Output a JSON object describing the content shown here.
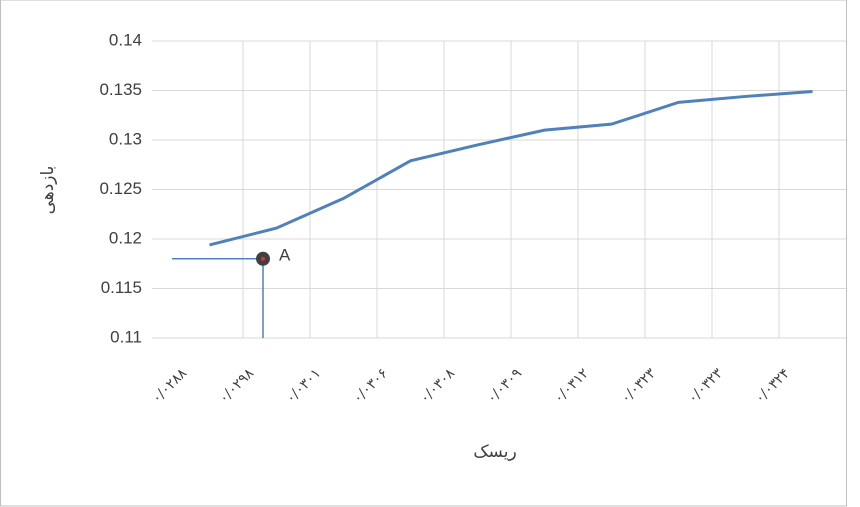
{
  "chart_data": {
    "type": "line",
    "categories": [
      "۰/۰۲۸۸",
      "۰/۰۲۹۸",
      "۰/۰۳۰۱",
      "۰/۰۳۰۶",
      "۰/۰۳۰۸",
      "۰/۰۳۰۹",
      "۰/۰۳۱۲",
      "۰/۰۳۲۳",
      "۰/۰۳۲۳",
      "۰/۰۳۲۴"
    ],
    "values": [
      0.1194,
      0.1211,
      0.1241,
      0.1279,
      0.1295,
      0.131,
      0.1316,
      0.1338,
      0.1344,
      0.1349
    ],
    "color": "#4f81bd",
    "ylim": [
      0.11,
      0.14
    ],
    "yticks": [
      0.11,
      0.115,
      0.12,
      0.125,
      0.13,
      0.135,
      0.14
    ],
    "grid": true,
    "y_label": "بازدهی",
    "x_label": "ریسک",
    "point": {
      "label": "A",
      "value": 0.118,
      "color": "#404040"
    }
  }
}
